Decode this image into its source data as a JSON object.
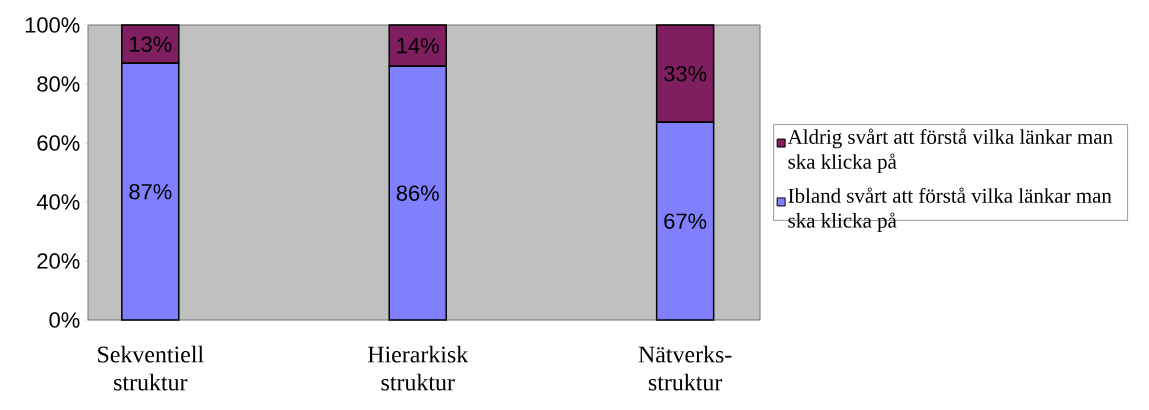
{
  "chart_data": {
    "type": "bar",
    "stacked": true,
    "categories": [
      "Sekventiell struktur",
      "Hierarkisk struktur",
      "Nätverks-struktur"
    ],
    "series": [
      {
        "name": "Ibland svårt att förstå vilka länkar man ska klicka på",
        "color": "#8080ff",
        "values": [
          87,
          86,
          67
        ],
        "value_labels": [
          "87%",
          "86%",
          "67%"
        ]
      },
      {
        "name": "Aldrig svårt att förstå vilka länkar man ska klicka på",
        "color": "#7f1f5f",
        "values": [
          13,
          14,
          33
        ],
        "value_labels": [
          "13%",
          "14%",
          "33%"
        ]
      }
    ],
    "ylim": [
      0,
      100
    ],
    "yticks": [
      {
        "value": 0,
        "label": "0%"
      },
      {
        "value": 20,
        "label": "20%"
      },
      {
        "value": 40,
        "label": "40%"
      },
      {
        "value": 60,
        "label": "60%"
      },
      {
        "value": 80,
        "label": "80%"
      },
      {
        "value": 100,
        "label": "100%"
      }
    ],
    "legend": "right"
  }
}
